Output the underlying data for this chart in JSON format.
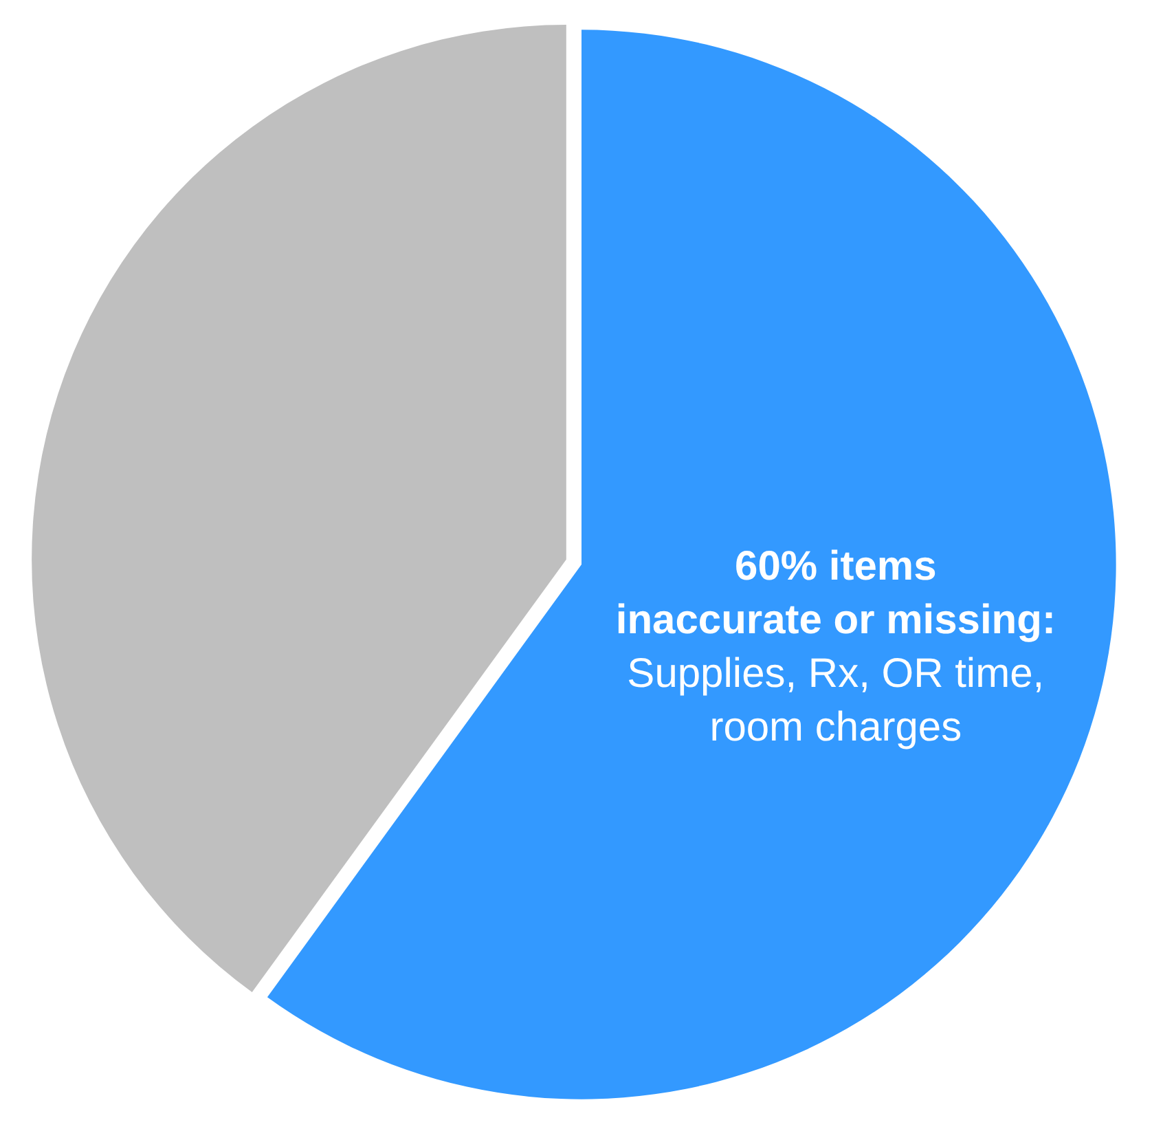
{
  "chart_data": {
    "type": "pie",
    "categories": [
      "60% items\ninaccurate or missing:\nSupplies, Rx, OR time,\nroom charges",
      null
    ],
    "values": [
      60,
      40
    ],
    "colors": [
      "#3399ff",
      "#bfbfbf"
    ],
    "legend": false
  }
}
